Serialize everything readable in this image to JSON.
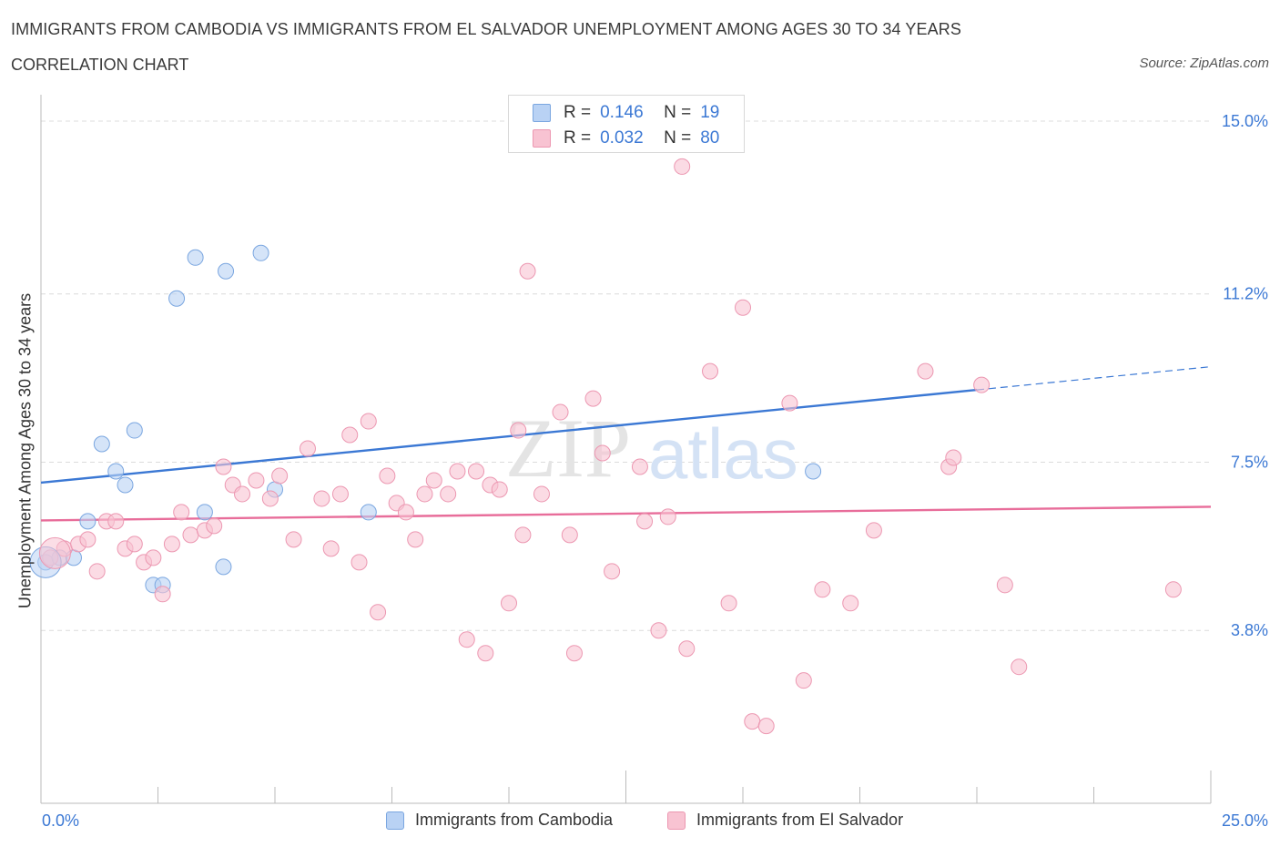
{
  "header": {
    "title": "IMMIGRANTS FROM CAMBODIA VS IMMIGRANTS FROM EL SALVADOR UNEMPLOYMENT AMONG AGES 30 TO 34 YEARS",
    "subtitle": "CORRELATION CHART",
    "source": "Source: ZipAtlas.com"
  },
  "watermark": {
    "zip": "ZIP",
    "atlas": "atlas"
  },
  "legend_top": {
    "r_label": "R =",
    "n_label": "N =",
    "rows": [
      {
        "r": "0.146",
        "n": "19",
        "fill": "#b9d2f4",
        "stroke": "#7aa6e0"
      },
      {
        "r": "0.032",
        "n": "80",
        "fill": "#f8c3d2",
        "stroke": "#ec97b1"
      }
    ]
  },
  "legend_bottom": {
    "items": [
      {
        "label": "Immigrants from Cambodia",
        "fill": "#b9d2f4",
        "stroke": "#7aa6e0"
      },
      {
        "label": "Immigrants from El Salvador",
        "fill": "#f8c3d2",
        "stroke": "#ec97b1"
      }
    ]
  },
  "chart_data": {
    "type": "scatter",
    "title": "IMMIGRANTS FROM CAMBODIA VS IMMIGRANTS FROM EL SALVADOR UNEMPLOYMENT AMONG AGES 30 TO 34 YEARS",
    "subtitle": "CORRELATION CHART",
    "xlabel": "",
    "ylabel": "Unemployment Among Ages 30 to 34 years",
    "xlim": [
      0,
      25
    ],
    "ylim": [
      0,
      15.3
    ],
    "x_tick_labels": [
      "0.0%",
      "25.0%"
    ],
    "y_ticks": [
      3.8,
      7.5,
      11.2,
      15.0
    ],
    "y_tick_labels": [
      "3.8%",
      "7.5%",
      "11.2%",
      "15.0%"
    ],
    "grid": "horizontal dashed",
    "legend_position": "top-center and bottom",
    "series": [
      {
        "name": "Immigrants from Cambodia",
        "color": "#3b78d4",
        "marker_fill": "#b9d2f4",
        "marker_stroke": "#7aa6e0",
        "points": [
          [
            0.1,
            5.3
          ],
          [
            0.4,
            5.4
          ],
          [
            0.7,
            5.4
          ],
          [
            1.0,
            6.2
          ],
          [
            1.3,
            7.9
          ],
          [
            1.6,
            7.3
          ],
          [
            1.8,
            7.0
          ],
          [
            2.0,
            8.2
          ],
          [
            2.4,
            4.8
          ],
          [
            2.6,
            4.8
          ],
          [
            2.9,
            11.1
          ],
          [
            3.3,
            12.0
          ],
          [
            3.5,
            6.4
          ],
          [
            3.9,
            5.2
          ],
          [
            3.95,
            11.7
          ],
          [
            4.7,
            12.1
          ],
          [
            5.0,
            6.9
          ],
          [
            7.0,
            6.4
          ],
          [
            16.5,
            7.3
          ]
        ],
        "trend": {
          "x": [
            0,
            25
          ],
          "y": [
            7.05,
            9.6
          ],
          "solid_until_x": 20
        }
      },
      {
        "name": "Immigrants from El Salvador",
        "color": "#e86d9a",
        "marker_fill": "#f8c3d2",
        "marker_stroke": "#ec97b1",
        "points": [
          [
            0.2,
            5.4
          ],
          [
            0.5,
            5.6
          ],
          [
            0.8,
            5.7
          ],
          [
            1.0,
            5.8
          ],
          [
            1.2,
            5.1
          ],
          [
            1.4,
            6.2
          ],
          [
            1.6,
            6.2
          ],
          [
            1.8,
            5.6
          ],
          [
            2.0,
            5.7
          ],
          [
            2.2,
            5.3
          ],
          [
            2.4,
            5.4
          ],
          [
            2.6,
            4.6
          ],
          [
            2.8,
            5.7
          ],
          [
            3.0,
            6.4
          ],
          [
            3.2,
            5.9
          ],
          [
            3.5,
            6.0
          ],
          [
            3.7,
            6.1
          ],
          [
            3.9,
            7.4
          ],
          [
            4.1,
            7.0
          ],
          [
            4.3,
            6.8
          ],
          [
            4.6,
            7.1
          ],
          [
            4.9,
            6.7
          ],
          [
            5.1,
            7.2
          ],
          [
            5.4,
            5.8
          ],
          [
            5.7,
            7.8
          ],
          [
            6.0,
            6.7
          ],
          [
            6.2,
            5.6
          ],
          [
            6.4,
            6.8
          ],
          [
            6.6,
            8.1
          ],
          [
            6.8,
            5.3
          ],
          [
            7.0,
            8.4
          ],
          [
            7.2,
            4.2
          ],
          [
            7.4,
            7.2
          ],
          [
            7.6,
            6.6
          ],
          [
            7.8,
            6.4
          ],
          [
            8.0,
            5.8
          ],
          [
            8.2,
            6.8
          ],
          [
            8.4,
            7.1
          ],
          [
            8.7,
            6.8
          ],
          [
            8.9,
            7.3
          ],
          [
            9.1,
            3.6
          ],
          [
            9.3,
            7.3
          ],
          [
            9.5,
            3.3
          ],
          [
            9.6,
            7.0
          ],
          [
            9.8,
            6.9
          ],
          [
            10.0,
            4.4
          ],
          [
            10.2,
            8.2
          ],
          [
            10.3,
            5.9
          ],
          [
            10.4,
            11.7
          ],
          [
            10.7,
            6.8
          ],
          [
            11.1,
            8.6
          ],
          [
            11.3,
            5.9
          ],
          [
            11.4,
            3.3
          ],
          [
            11.8,
            8.9
          ],
          [
            12.0,
            7.7
          ],
          [
            12.2,
            5.1
          ],
          [
            12.8,
            7.4
          ],
          [
            12.9,
            6.2
          ],
          [
            13.2,
            3.8
          ],
          [
            13.4,
            6.3
          ],
          [
            13.7,
            14.0
          ],
          [
            13.8,
            3.4
          ],
          [
            14.3,
            9.5
          ],
          [
            14.7,
            4.4
          ],
          [
            15.0,
            10.9
          ],
          [
            15.2,
            1.8
          ],
          [
            15.5,
            1.7
          ],
          [
            16.0,
            8.8
          ],
          [
            16.3,
            2.7
          ],
          [
            16.7,
            4.7
          ],
          [
            17.3,
            4.4
          ],
          [
            17.8,
            6.0
          ],
          [
            18.9,
            9.5
          ],
          [
            19.4,
            7.4
          ],
          [
            19.5,
            7.6
          ],
          [
            20.1,
            9.2
          ],
          [
            20.6,
            4.8
          ],
          [
            20.9,
            3.0
          ],
          [
            24.2,
            4.7
          ]
        ],
        "trend": {
          "x": [
            0,
            25
          ],
          "y": [
            6.22,
            6.52
          ],
          "solid_until_x": 25
        }
      }
    ],
    "big_points": [
      {
        "series": "Immigrants from Cambodia",
        "x": 0.1,
        "y": 5.3
      },
      {
        "series": "Immigrants from El Salvador",
        "x": 0.3,
        "y": 5.5
      }
    ]
  }
}
